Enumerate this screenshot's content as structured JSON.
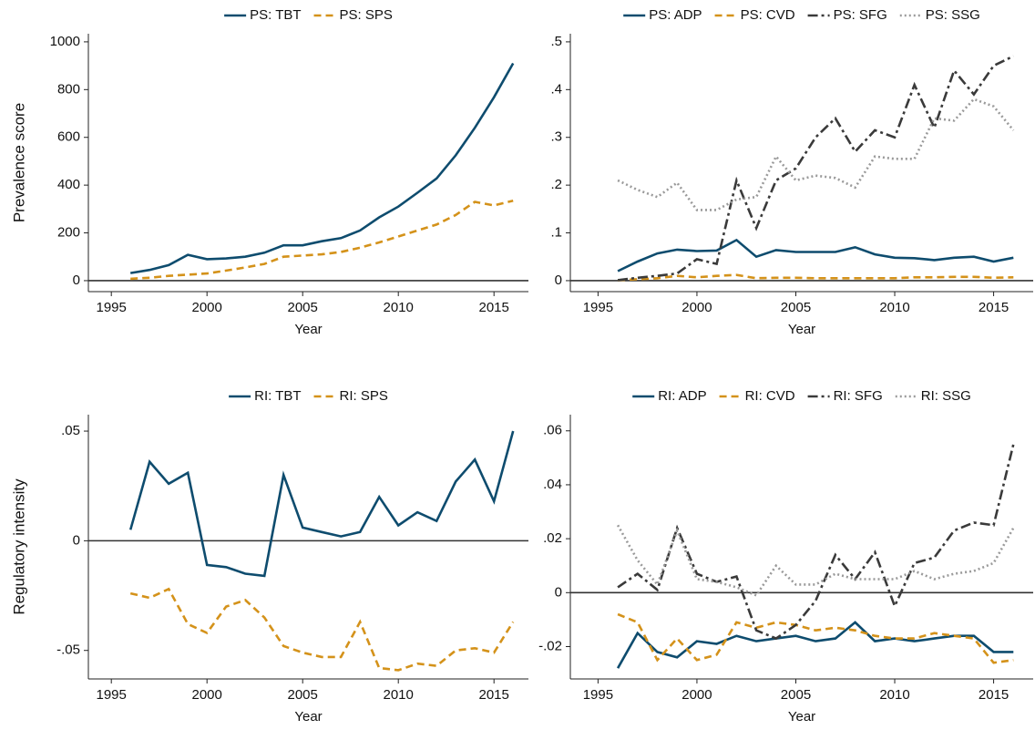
{
  "chart_data": [
    {
      "type": "line",
      "y_label": "Prevalence score",
      "x_label": "Year",
      "x": [
        1996,
        1997,
        1998,
        1999,
        2000,
        2001,
        2002,
        2003,
        2004,
        2005,
        2006,
        2007,
        2008,
        2009,
        2010,
        2011,
        2012,
        2013,
        2014,
        2015,
        2016
      ],
      "xlim": [
        1993.8,
        2016.8
      ],
      "xticks": [
        1995,
        2000,
        2005,
        2010,
        2015
      ],
      "ylim": [
        -46,
        1034
      ],
      "yticks": [
        0,
        200,
        400,
        600,
        800,
        1000
      ],
      "zero_line": true,
      "legend": "top",
      "series": [
        {
          "name": "PS: TBT",
          "color": "#0e4c6e",
          "dash": "solid",
          "values": [
            32,
            45,
            65,
            108,
            90,
            93,
            100,
            117,
            148,
            148,
            165,
            178,
            210,
            265,
            310,
            368,
            428,
            525,
            640,
            768,
            910
          ]
        },
        {
          "name": "PS: SPS",
          "color": "#d4921a",
          "dash": "dashed",
          "values": [
            8,
            12,
            20,
            25,
            30,
            42,
            55,
            70,
            100,
            105,
            110,
            120,
            138,
            160,
            185,
            210,
            235,
            275,
            330,
            315,
            335
          ]
        }
      ]
    },
    {
      "type": "line",
      "x_label": "Year",
      "x": [
        1996,
        1997,
        1998,
        1999,
        2000,
        2001,
        2002,
        2003,
        2004,
        2005,
        2006,
        2007,
        2008,
        2009,
        2010,
        2011,
        2012,
        2013,
        2014,
        2015,
        2016
      ],
      "xlim": [
        1993.6,
        2017
      ],
      "xticks": [
        1995,
        2000,
        2005,
        2010,
        2015
      ],
      "ylim": [
        -0.023,
        0.517
      ],
      "yticks": [
        0,
        {
          "value": 0.1,
          "label": ".1"
        },
        {
          "value": 0.2,
          "label": ".2"
        },
        {
          "value": 0.3,
          "label": ".3"
        },
        {
          "value": 0.4,
          "label": ".4"
        },
        {
          "value": 0.5,
          "label": ".5"
        }
      ],
      "zero_line": true,
      "legend": "top",
      "series": [
        {
          "name": "PS: ADP",
          "color": "#0e4c6e",
          "dash": "solid",
          "values": [
            0.02,
            0.04,
            0.057,
            0.065,
            0.062,
            0.063,
            0.085,
            0.05,
            0.064,
            0.06,
            0.06,
            0.06,
            0.07,
            0.055,
            0.048,
            0.047,
            0.043,
            0.048,
            0.05,
            0.04,
            0.048
          ]
        },
        {
          "name": "PS: CVD",
          "color": "#d4921a",
          "dash": "dashed",
          "values": [
            0.001,
            0.003,
            0.005,
            0.01,
            0.007,
            0.01,
            0.012,
            0.005,
            0.006,
            0.006,
            0.005,
            0.005,
            0.005,
            0.005,
            0.005,
            0.007,
            0.007,
            0.008,
            0.008,
            0.006,
            0.007
          ]
        },
        {
          "name": "PS: SFG",
          "color": "#3a3a3a",
          "dash": "dashdot",
          "values": [
            0.001,
            0.006,
            0.01,
            0.015,
            0.045,
            0.035,
            0.21,
            0.11,
            0.21,
            0.235,
            0.3,
            0.34,
            0.27,
            0.315,
            0.3,
            0.41,
            0.32,
            0.44,
            0.39,
            0.45,
            0.47
          ]
        },
        {
          "name": "PS: SSG",
          "color": "#9a9a9a",
          "dash": "dotted",
          "values": [
            0.21,
            0.19,
            0.175,
            0.205,
            0.148,
            0.148,
            0.17,
            0.175,
            0.26,
            0.21,
            0.22,
            0.215,
            0.195,
            0.26,
            0.255,
            0.255,
            0.34,
            0.335,
            0.38,
            0.365,
            0.315
          ]
        }
      ]
    },
    {
      "type": "line",
      "y_label": "Regulatory intensity",
      "x_label": "Year",
      "x": [
        1996,
        1997,
        1998,
        1999,
        2000,
        2001,
        2002,
        2003,
        2004,
        2005,
        2006,
        2007,
        2008,
        2009,
        2010,
        2011,
        2012,
        2013,
        2014,
        2015,
        2016
      ],
      "xlim": [
        1993.8,
        2016.8
      ],
      "xticks": [
        1995,
        2000,
        2005,
        2010,
        2015
      ],
      "ylim": [
        -0.063,
        0.0575
      ],
      "yticks": [
        {
          "value": -0.05,
          "label": "-.05"
        },
        0,
        {
          "value": 0.05,
          "label": ".05"
        }
      ],
      "zero_line": true,
      "legend": "top",
      "series": [
        {
          "name": "RI: TBT",
          "color": "#0e4c6e",
          "dash": "solid",
          "values": [
            0.005,
            0.036,
            0.026,
            0.031,
            -0.011,
            -0.012,
            -0.015,
            -0.016,
            0.03,
            0.006,
            0.004,
            0.002,
            0.004,
            0.02,
            0.007,
            0.013,
            0.009,
            0.027,
            0.037,
            0.018,
            0.05
          ]
        },
        {
          "name": "RI: SPS",
          "color": "#d4921a",
          "dash": "dashed",
          "values": [
            -0.024,
            -0.026,
            -0.022,
            -0.038,
            -0.042,
            -0.03,
            -0.027,
            -0.035,
            -0.048,
            -0.051,
            -0.053,
            -0.053,
            -0.037,
            -0.058,
            -0.059,
            -0.056,
            -0.057,
            -0.05,
            -0.049,
            -0.051,
            -0.037
          ]
        }
      ]
    },
    {
      "type": "line",
      "x_label": "Year",
      "x": [
        1996,
        1997,
        1998,
        1999,
        2000,
        2001,
        2002,
        2003,
        2004,
        2005,
        2006,
        2007,
        2008,
        2009,
        2010,
        2011,
        2012,
        2013,
        2014,
        2015,
        2016
      ],
      "xlim": [
        1993.6,
        2017
      ],
      "xticks": [
        1995,
        2000,
        2005,
        2010,
        2015
      ],
      "ylim": [
        -0.032,
        0.066
      ],
      "yticks": [
        {
          "value": -0.02,
          "label": "-.02"
        },
        0,
        {
          "value": 0.02,
          "label": ".02"
        },
        {
          "value": 0.04,
          "label": ".04"
        },
        {
          "value": 0.06,
          "label": ".06"
        }
      ],
      "zero_line": true,
      "legend": "top",
      "series": [
        {
          "name": "RI: ADP",
          "color": "#0e4c6e",
          "dash": "solid",
          "values": [
            -0.028,
            -0.015,
            -0.022,
            -0.024,
            -0.018,
            -0.019,
            -0.016,
            -0.018,
            -0.017,
            -0.016,
            -0.018,
            -0.017,
            -0.011,
            -0.018,
            -0.017,
            -0.018,
            -0.017,
            -0.016,
            -0.016,
            -0.022,
            -0.022
          ]
        },
        {
          "name": "RI: CVD",
          "color": "#d4921a",
          "dash": "dashed",
          "values": [
            -0.008,
            -0.011,
            -0.025,
            -0.017,
            -0.025,
            -0.023,
            -0.011,
            -0.013,
            -0.011,
            -0.012,
            -0.014,
            -0.013,
            -0.014,
            -0.016,
            -0.017,
            -0.017,
            -0.015,
            -0.016,
            -0.017,
            -0.026,
            -0.025
          ]
        },
        {
          "name": "RI: SFG",
          "color": "#3a3a3a",
          "dash": "dashdot",
          "values": [
            0.002,
            0.007,
            0.001,
            0.024,
            0.007,
            0.004,
            0.006,
            -0.014,
            -0.017,
            -0.012,
            -0.003,
            0.014,
            0.005,
            0.015,
            -0.005,
            0.011,
            0.013,
            0.023,
            0.026,
            0.025,
            0.055
          ]
        },
        {
          "name": "RI: SSG",
          "color": "#9a9a9a",
          "dash": "dotted",
          "values": [
            0.025,
            0.012,
            0.003,
            0.023,
            0.005,
            0.004,
            0.002,
            -0.001,
            0.01,
            0.003,
            0.003,
            0.007,
            0.005,
            0.005,
            0.005,
            0.008,
            0.005,
            0.007,
            0.008,
            0.011,
            0.024
          ]
        }
      ]
    }
  ]
}
